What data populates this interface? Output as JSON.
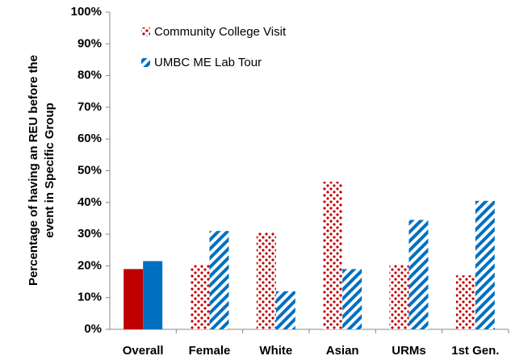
{
  "chart_data": {
    "type": "bar",
    "ylabel": [
      "Percentage of having an REU before the",
      "event in Specific Group"
    ],
    "categories": [
      "Overall",
      "Female",
      "White",
      "Asian",
      "URMs",
      "1st Gen."
    ],
    "series": [
      {
        "name": "Community College Visit",
        "color": "#c00000",
        "values": [
          19,
          20.5,
          30.5,
          46.5,
          20.5,
          17
        ]
      },
      {
        "name": "UMBC ME Lab Tour",
        "color": "#0070c0",
        "values": [
          21.5,
          31,
          12,
          19,
          34.5,
          40.5
        ]
      }
    ],
    "ylim": [
      0,
      100
    ],
    "yticks": [
      {
        "value": 0,
        "label": "0%"
      },
      {
        "value": 10,
        "label": "10%"
      },
      {
        "value": 20,
        "label": "20%"
      },
      {
        "value": 30,
        "label": "30%"
      },
      {
        "value": 40,
        "label": "40%"
      },
      {
        "value": 50,
        "label": "50%"
      },
      {
        "value": 60,
        "label": "60%"
      },
      {
        "value": 70,
        "label": "70%"
      },
      {
        "value": 80,
        "label": "80%"
      },
      {
        "value": 90,
        "label": "90%"
      },
      {
        "value": 100,
        "label": "100%"
      }
    ],
    "grid": false,
    "legend": "upper left"
  }
}
